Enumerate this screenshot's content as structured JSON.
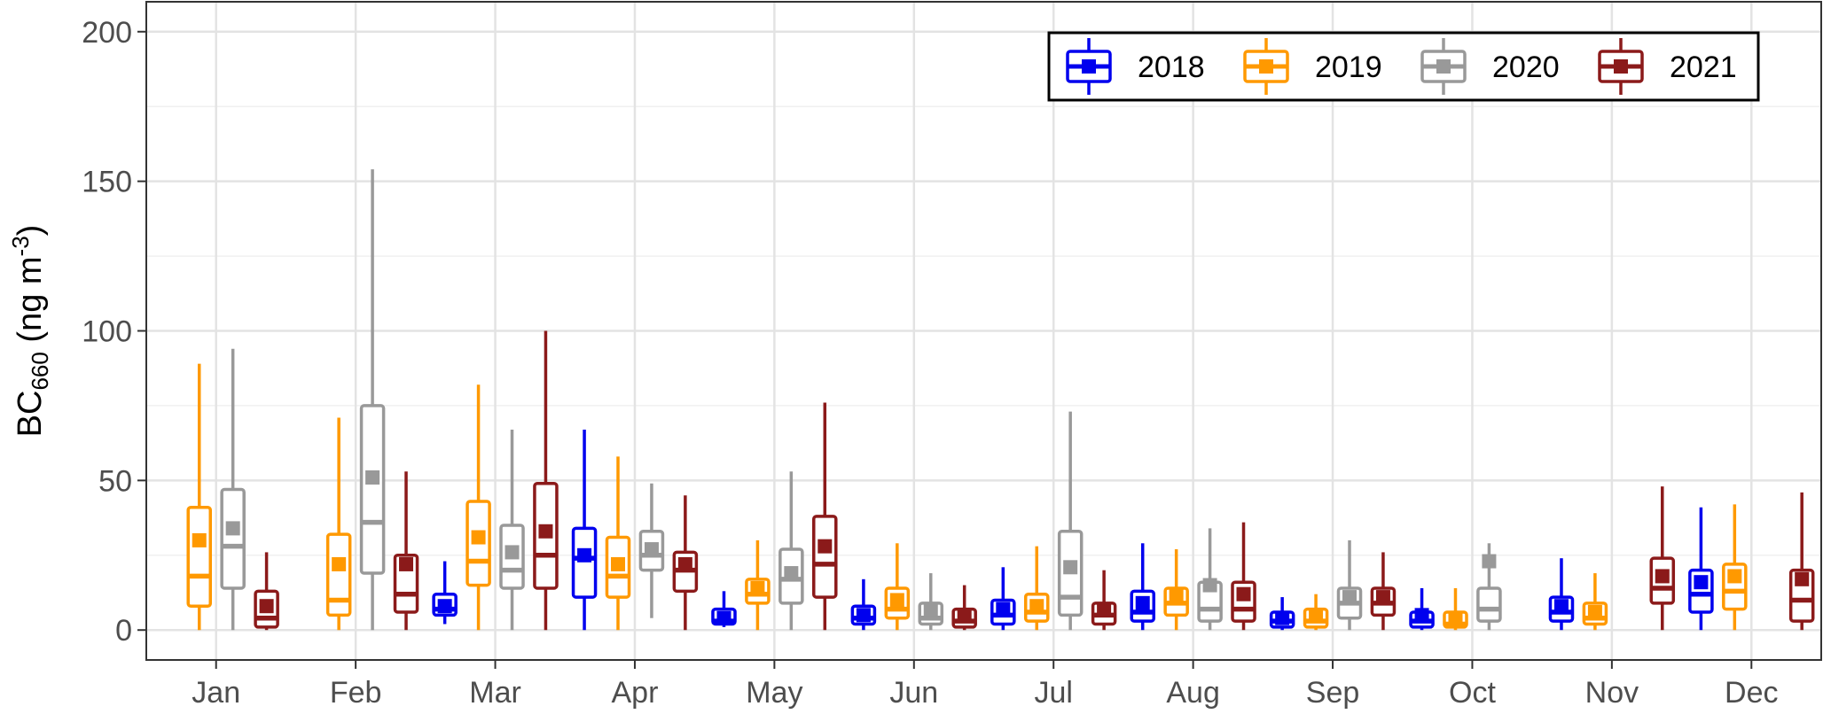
{
  "chart_data": {
    "type": "box",
    "ylabel_main": "BC",
    "ylabel_sub": "660",
    "ylabel_unit_open": " (ng m",
    "ylabel_unit_sup": "-3",
    "ylabel_unit_close": ")",
    "ylim": [
      -10,
      210
    ],
    "yticks": [
      0,
      50,
      100,
      150,
      200
    ],
    "ytick_labels": [
      "0",
      "50",
      "100",
      "150",
      "200"
    ],
    "categories": [
      "Jan",
      "Feb",
      "Mar",
      "Apr",
      "May",
      "Jun",
      "Jul",
      "Aug",
      "Sep",
      "Oct",
      "Nov",
      "Dec"
    ],
    "grid": true,
    "legend_position": "top-right",
    "series": [
      {
        "name": "2018",
        "color": "#0000ee",
        "boxes": [
          null,
          null,
          {
            "min": 2,
            "q1": 5,
            "median": 7,
            "q3": 12,
            "max": 23,
            "mean": 8
          },
          {
            "min": 0,
            "q1": 11,
            "median": 24,
            "q3": 34,
            "max": 67,
            "mean": 25
          },
          {
            "min": 1,
            "q1": 2,
            "median": 3,
            "q3": 7,
            "max": 13,
            "mean": 4
          },
          {
            "min": 0,
            "q1": 2,
            "median": 4,
            "q3": 8,
            "max": 17,
            "mean": 5
          },
          {
            "min": 0,
            "q1": 2,
            "median": 5,
            "q3": 10,
            "max": 21,
            "mean": 7
          },
          {
            "min": 0,
            "q1": 3,
            "median": 6,
            "q3": 13,
            "max": 29,
            "mean": 9
          },
          {
            "min": 0,
            "q1": 1,
            "median": 3,
            "q3": 6,
            "max": 11,
            "mean": 4
          },
          {
            "min": 0,
            "q1": 1,
            "median": 3,
            "q3": 6,
            "max": 14,
            "mean": 5
          },
          {
            "min": 0,
            "q1": 3,
            "median": 6,
            "q3": 11,
            "max": 24,
            "mean": 8
          },
          {
            "min": 0,
            "q1": 6,
            "median": 12,
            "q3": 20,
            "max": 41,
            "mean": 16
          }
        ]
      },
      {
        "name": "2019",
        "color": "#ff9900",
        "boxes": [
          {
            "min": 0,
            "q1": 8,
            "median": 18,
            "q3": 41,
            "max": 89,
            "mean": 30
          },
          {
            "min": 0,
            "q1": 5,
            "median": 10,
            "q3": 32,
            "max": 71,
            "mean": 22
          },
          {
            "min": 0,
            "q1": 15,
            "median": 23,
            "q3": 43,
            "max": 82,
            "mean": 31
          },
          {
            "min": 0,
            "q1": 11,
            "median": 18,
            "q3": 31,
            "max": 58,
            "mean": 22
          },
          {
            "min": 0,
            "q1": 9,
            "median": 12,
            "q3": 17,
            "max": 30,
            "mean": 14
          },
          {
            "min": 0,
            "q1": 4,
            "median": 7,
            "q3": 14,
            "max": 29,
            "mean": 10
          },
          {
            "min": 0,
            "q1": 3,
            "median": 6,
            "q3": 12,
            "max": 28,
            "mean": 8
          },
          {
            "min": 0,
            "q1": 5,
            "median": 9,
            "q3": 14,
            "max": 27,
            "mean": 12
          },
          {
            "min": 0,
            "q1": 1,
            "median": 3,
            "q3": 7,
            "max": 12,
            "mean": 5
          },
          {
            "min": 0,
            "q1": 1,
            "median": 2,
            "q3": 6,
            "max": 14,
            "mean": 4
          },
          {
            "min": 0,
            "q1": 2,
            "median": 4,
            "q3": 9,
            "max": 19,
            "mean": 6
          },
          {
            "min": 0,
            "q1": 7,
            "median": 13,
            "q3": 22,
            "max": 42,
            "mean": 18
          }
        ]
      },
      {
        "name": "2020",
        "color": "#999999",
        "boxes": [
          {
            "min": 0,
            "q1": 14,
            "median": 28,
            "q3": 47,
            "max": 94,
            "mean": 34
          },
          {
            "min": 0,
            "q1": 19,
            "median": 36,
            "q3": 75,
            "max": 154,
            "mean": 51
          },
          {
            "min": 0,
            "q1": 14,
            "median": 20,
            "q3": 35,
            "max": 67,
            "mean": 26
          },
          {
            "min": 4,
            "q1": 20,
            "median": 25,
            "q3": 33,
            "max": 49,
            "mean": 27
          },
          {
            "min": 0,
            "q1": 9,
            "median": 17,
            "q3": 27,
            "max": 53,
            "mean": 19
          },
          {
            "min": 0,
            "q1": 2,
            "median": 4,
            "q3": 9,
            "max": 19,
            "mean": 7
          },
          {
            "min": 0,
            "q1": 5,
            "median": 11,
            "q3": 33,
            "max": 73,
            "mean": 21
          },
          {
            "min": 0,
            "q1": 3,
            "median": 7,
            "q3": 16,
            "max": 34,
            "mean": 15
          },
          {
            "min": 0,
            "q1": 4,
            "median": 9,
            "q3": 14,
            "max": 30,
            "mean": 11
          },
          {
            "min": 0,
            "q1": 3,
            "median": 7,
            "q3": 14,
            "max": 29,
            "mean": 23
          },
          null,
          null
        ]
      },
      {
        "name": "2021",
        "color": "#8b1a1a",
        "boxes": [
          {
            "min": 0,
            "q1": 1,
            "median": 4,
            "q3": 13,
            "max": 26,
            "mean": 8
          },
          {
            "min": 0,
            "q1": 6,
            "median": 12,
            "q3": 25,
            "max": 53,
            "mean": 22
          },
          {
            "min": 0,
            "q1": 14,
            "median": 25,
            "q3": 49,
            "max": 100,
            "mean": 33
          },
          {
            "min": 0,
            "q1": 13,
            "median": 20,
            "q3": 26,
            "max": 45,
            "mean": 22
          },
          {
            "min": 0,
            "q1": 11,
            "median": 22,
            "q3": 38,
            "max": 76,
            "mean": 28
          },
          {
            "min": 0,
            "q1": 1,
            "median": 3,
            "q3": 7,
            "max": 15,
            "mean": 5
          },
          {
            "min": 0,
            "q1": 2,
            "median": 5,
            "q3": 9,
            "max": 20,
            "mean": 7
          },
          {
            "min": 0,
            "q1": 3,
            "median": 7,
            "q3": 16,
            "max": 36,
            "mean": 12
          },
          {
            "min": 0,
            "q1": 5,
            "median": 9,
            "q3": 14,
            "max": 26,
            "mean": 11
          },
          null,
          {
            "min": 0,
            "q1": 9,
            "median": 14,
            "q3": 24,
            "max": 48,
            "mean": 18
          },
          {
            "min": 0,
            "q1": 3,
            "median": 10,
            "q3": 20,
            "max": 46,
            "mean": 17
          }
        ]
      }
    ]
  }
}
